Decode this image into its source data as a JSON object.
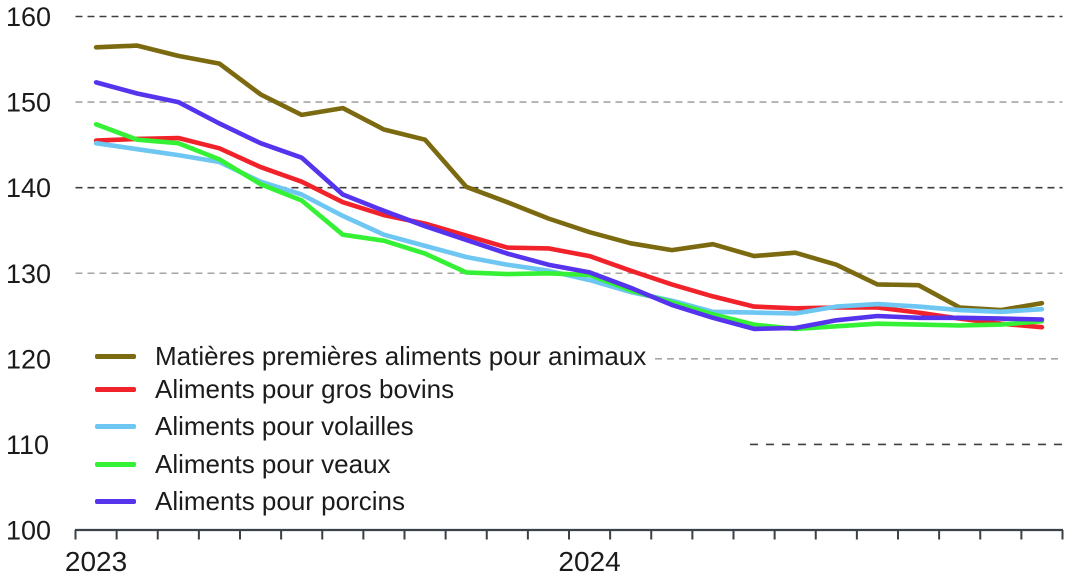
{
  "chart_data": {
    "type": "line",
    "title": "",
    "xlabel": "",
    "ylabel": "",
    "x_unit": "month",
    "n_points": 24,
    "x_labels": [
      "2023",
      "2024"
    ],
    "y_ticks": [
      160,
      150,
      140,
      130,
      120,
      110,
      100
    ],
    "ylim": [
      100,
      160
    ],
    "grid": "horizontal-dashed",
    "legend_position": "inside-bottom-left",
    "text_color": "#1b1b1b",
    "axis_color": "#3a4149",
    "series": [
      {
        "name": "Matières premières aliments pour animaux",
        "color": "#7c6a10",
        "values": [
          156.4,
          156.6,
          155.4,
          154.5,
          150.9,
          148.5,
          149.3,
          146.8,
          145.6,
          140.1,
          138.3,
          136.4,
          134.8,
          133.5,
          132.7,
          133.4,
          132.0,
          132.4,
          131.0,
          128.7,
          128.6,
          126.0,
          125.7,
          126.5
        ]
      },
      {
        "name": "Aliments pour gros bovins",
        "color": "#f1222a",
        "values": [
          145.5,
          145.7,
          145.8,
          144.6,
          142.4,
          140.7,
          138.3,
          136.8,
          135.8,
          134.4,
          133.0,
          132.9,
          132.0,
          130.3,
          128.7,
          127.3,
          126.1,
          125.9,
          126.0,
          126.0,
          125.4,
          124.7,
          124.1,
          123.7
        ]
      },
      {
        "name": "Aliments pour volailles",
        "color": "#6ec6f2",
        "values": [
          145.2,
          144.5,
          143.8,
          143.0,
          140.7,
          139.2,
          136.7,
          134.5,
          133.2,
          131.9,
          131.0,
          130.3,
          129.2,
          127.8,
          126.8,
          125.5,
          125.4,
          125.3,
          126.1,
          126.4,
          126.1,
          125.7,
          125.5,
          125.8
        ]
      },
      {
        "name": "Aliments pour veaux",
        "color": "#35f135",
        "values": [
          147.4,
          145.6,
          145.2,
          143.3,
          140.4,
          138.5,
          134.5,
          133.8,
          132.3,
          130.1,
          129.9,
          130.0,
          129.8,
          128.0,
          126.6,
          125.2,
          124.0,
          123.5,
          123.8,
          124.1,
          124.0,
          123.9,
          124.0,
          124.4
        ]
      },
      {
        "name": "Aliments pour porcins",
        "color": "#5633ec",
        "values": [
          152.3,
          151.0,
          150.0,
          147.5,
          145.2,
          143.5,
          139.2,
          137.3,
          135.5,
          133.9,
          132.3,
          131.0,
          130.1,
          128.3,
          126.3,
          124.8,
          123.5,
          123.6,
          124.5,
          125.0,
          124.8,
          124.8,
          124.7,
          124.6
        ]
      }
    ]
  }
}
